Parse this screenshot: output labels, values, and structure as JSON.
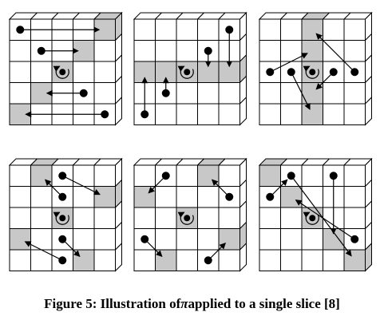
{
  "figure": {
    "grid_size": 5,
    "colors": {
      "shaded": "#c8c8c8",
      "line": "#000000",
      "background": "#ffffff"
    },
    "panels": [
      {
        "shaded": [
          [
            4,
            0
          ],
          [
            3,
            1
          ],
          [
            2,
            2
          ],
          [
            1,
            3
          ],
          [
            0,
            4
          ]
        ],
        "arrows": [
          [
            0,
            0,
            4,
            0
          ],
          [
            1,
            1,
            3,
            1
          ],
          [
            3,
            3,
            1,
            3
          ],
          [
            4,
            4,
            0,
            4
          ]
        ],
        "dots": [
          [
            0,
            0
          ],
          [
            1,
            1
          ],
          [
            3,
            3
          ],
          [
            4,
            4
          ]
        ]
      },
      {
        "shaded": [
          [
            0,
            2
          ],
          [
            1,
            2
          ],
          [
            2,
            2
          ],
          [
            3,
            2
          ],
          [
            4,
            2
          ]
        ],
        "arrows": [
          [
            4,
            0,
            4,
            2
          ],
          [
            3,
            1,
            3,
            2
          ],
          [
            1,
            3,
            1,
            2
          ],
          [
            0,
            4,
            0,
            2
          ]
        ],
        "dots": [
          [
            4,
            0
          ],
          [
            3,
            1
          ],
          [
            1,
            3
          ],
          [
            0,
            4
          ]
        ]
      },
      {
        "shaded": [
          [
            2,
            0
          ],
          [
            2,
            1
          ],
          [
            2,
            2
          ],
          [
            2,
            3
          ],
          [
            2,
            4
          ]
        ],
        "arrows": [
          [
            0,
            2,
            2,
            1
          ],
          [
            1,
            2,
            2,
            4
          ],
          [
            3,
            2,
            2,
            3
          ],
          [
            4,
            2,
            2,
            0
          ]
        ],
        "dots": [
          [
            0,
            2
          ],
          [
            1,
            2
          ],
          [
            3,
            2
          ],
          [
            4,
            2
          ]
        ]
      },
      {
        "shaded": [
          [
            1,
            0
          ],
          [
            4,
            1
          ],
          [
            2,
            2
          ],
          [
            0,
            3
          ],
          [
            3,
            4
          ]
        ],
        "arrows": [
          [
            2,
            0,
            4,
            1
          ],
          [
            2,
            1,
            1,
            0
          ],
          [
            2,
            3,
            3,
            4
          ],
          [
            2,
            4,
            0,
            3
          ]
        ],
        "dots": [
          [
            2,
            0
          ],
          [
            2,
            1
          ],
          [
            2,
            3
          ],
          [
            2,
            4
          ]
        ]
      },
      {
        "shaded": [
          [
            3,
            0
          ],
          [
            0,
            1
          ],
          [
            2,
            2
          ],
          [
            4,
            3
          ],
          [
            1,
            4
          ]
        ],
        "arrows": [
          [
            1,
            0,
            0,
            1
          ],
          [
            4,
            1,
            3,
            0
          ],
          [
            0,
            3,
            1,
            4
          ],
          [
            3,
            4,
            4,
            3
          ]
        ],
        "dots": [
          [
            1,
            0
          ],
          [
            4,
            1
          ],
          [
            0,
            3
          ],
          [
            3,
            4
          ]
        ]
      },
      {
        "shaded": [
          [
            0,
            0
          ],
          [
            1,
            1
          ],
          [
            2,
            2
          ],
          [
            3,
            3
          ],
          [
            4,
            4
          ]
        ],
        "arrows": [
          [
            0,
            1,
            1,
            0
          ],
          [
            1,
            0,
            4,
            4
          ],
          [
            3,
            0,
            3,
            3
          ],
          [
            4,
            3,
            1,
            1
          ]
        ],
        "dots": [
          [
            0,
            1
          ],
          [
            1,
            0
          ],
          [
            3,
            0
          ],
          [
            4,
            3
          ]
        ]
      }
    ]
  },
  "caption": {
    "prefix": "Figure 5:  Illustration of ",
    "symbol": "π",
    "suffix": " applied to a single slice [8]"
  }
}
